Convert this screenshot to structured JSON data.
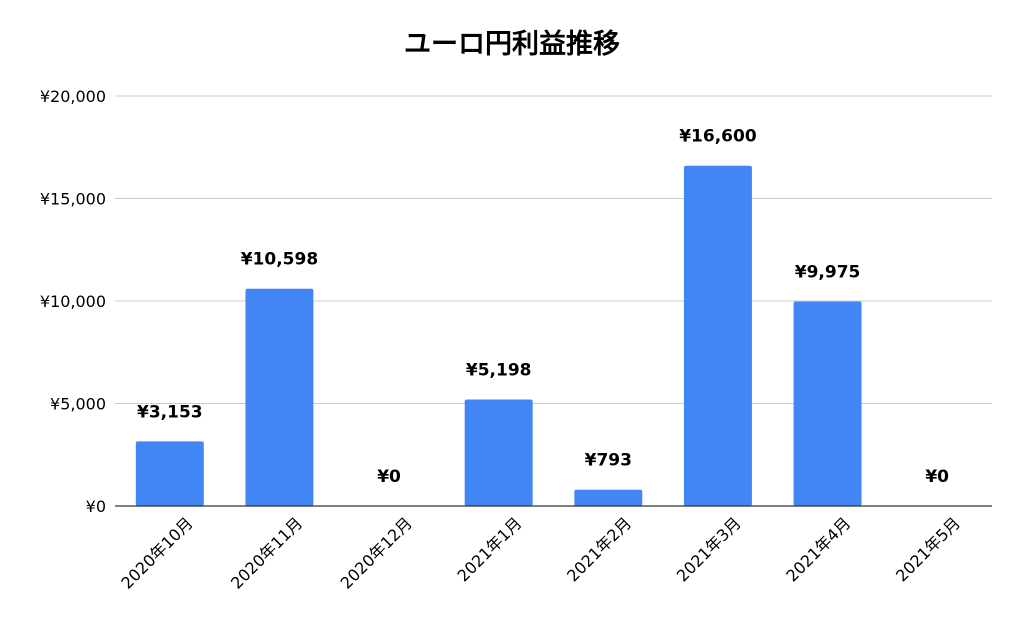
{
  "chart_data": {
    "type": "bar",
    "title": "ユーロ円利益推移",
    "xlabel": "",
    "ylabel": "",
    "categories": [
      "2020年10月",
      "2020年11月",
      "2020年12月",
      "2021年1月",
      "2021年2月",
      "2021年3月",
      "2021年4月",
      "2021年5月"
    ],
    "values": [
      3153,
      10598,
      0,
      5198,
      793,
      16600,
      9975,
      0
    ],
    "data_labels": [
      "¥3,153",
      "¥10,598",
      "¥0",
      "¥5,198",
      "¥793",
      "¥16,600",
      "¥9,975",
      "¥0"
    ],
    "y_ticks": [
      0,
      5000,
      10000,
      15000,
      20000
    ],
    "y_tick_labels": [
      "¥0",
      "¥5,000",
      "¥10,000",
      "¥15,000",
      "¥20,000"
    ],
    "ylim": [
      0,
      20000
    ],
    "grid": true,
    "legend": "none",
    "colors": {
      "bar": "#4285f4",
      "grid": "#cccccc",
      "axis": "#333333",
      "text": "#000000"
    }
  }
}
